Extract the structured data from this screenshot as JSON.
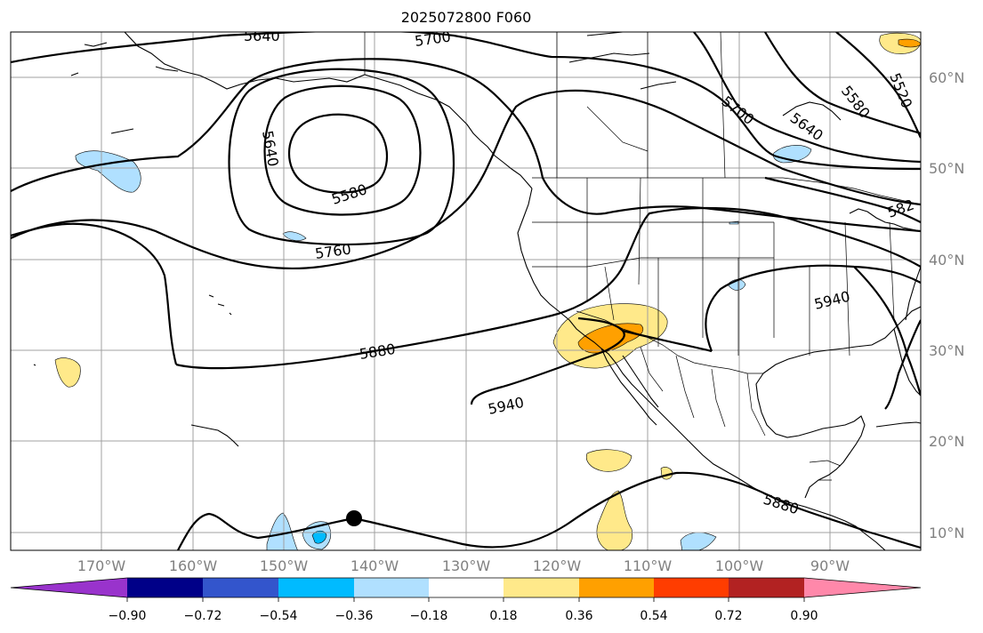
{
  "title": "2025072800 F060",
  "lat_labels": [
    "60°N",
    "50°N",
    "40°N",
    "30°N",
    "20°N",
    "10°N"
  ],
  "lon_labels": [
    "170°W",
    "160°W",
    "150°W",
    "140°W",
    "130°W",
    "120°W",
    "110°W",
    "100°W",
    "90°W"
  ],
  "contour_labels": [
    "5640",
    "5700",
    "5640",
    "5580",
    "5760",
    "5880",
    "5940",
    "5940",
    "5700",
    "5640",
    "5580",
    "5520",
    "582",
    "5880"
  ],
  "colorbar": {
    "colors": [
      "#9933cc",
      "#000088",
      "#3355cc",
      "#00bbff",
      "#b0e0ff",
      "#ffffff",
      "#ffe98a",
      "#ffa000",
      "#ff3d00",
      "#b22222",
      "#ff88aa"
    ],
    "tick_labels": [
      "−0.90",
      "−0.72",
      "−0.54",
      "−0.36",
      "−0.18",
      "0.18",
      "0.36",
      "0.54",
      "0.72",
      "0.90"
    ]
  },
  "shading_colors": {
    "pos1": "#ffe98a",
    "pos2": "#ffa000",
    "neg1": "#b0e0ff",
    "neg2": "#00bbff"
  }
}
